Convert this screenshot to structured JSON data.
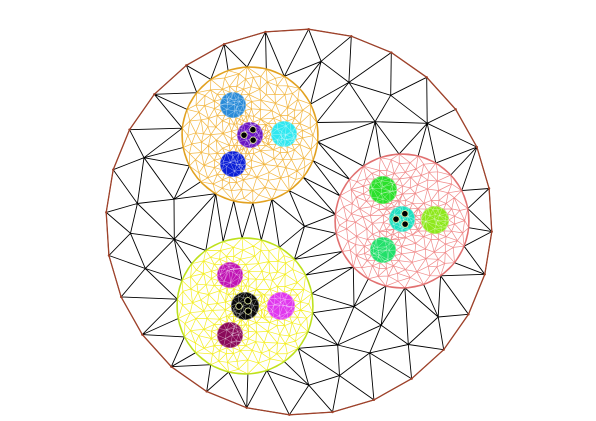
{
  "figure": {
    "kind": "triangulated-mesh",
    "background": "#ffffff",
    "outer_boundary": {
      "vertex_count": 28,
      "boundary_color": "#a0422a",
      "edge_color": "#000000"
    },
    "subdomains": [
      {
        "name": "cluster-top-left",
        "mesh_color": "#f2b640",
        "boundary_color": "#e0a020",
        "inclusions": [
          {
            "name": "inclusion-blue-top",
            "color": "#2a8bd8"
          },
          {
            "name": "inclusion-cyan",
            "color": "#2ee8f0"
          },
          {
            "name": "inclusion-blue-bottom",
            "color": "#0b1fd6"
          },
          {
            "name": "inclusion-core",
            "color": "#6a16c4",
            "core": true
          }
        ]
      },
      {
        "name": "cluster-right",
        "mesh_color": "#f08a8a",
        "boundary_color": "#e07070",
        "inclusions": [
          {
            "name": "inclusion-green-top",
            "color": "#2be02b"
          },
          {
            "name": "inclusion-lime",
            "color": "#8ee81c"
          },
          {
            "name": "inclusion-green-bottom",
            "color": "#22e06a"
          },
          {
            "name": "inclusion-core",
            "color": "#1de0c0",
            "core": true
          }
        ]
      },
      {
        "name": "cluster-bottom-left",
        "mesh_color": "#f4ee22",
        "boundary_color": "#b8e020",
        "inclusions": [
          {
            "name": "inclusion-magenta-top",
            "color": "#c014b4"
          },
          {
            "name": "inclusion-magenta-right",
            "color": "#e038ee"
          },
          {
            "name": "inclusion-maroon",
            "color": "#8a0a5a"
          },
          {
            "name": "inclusion-core",
            "color": "#0a0a0a",
            "core": true
          }
        ]
      }
    ]
  }
}
